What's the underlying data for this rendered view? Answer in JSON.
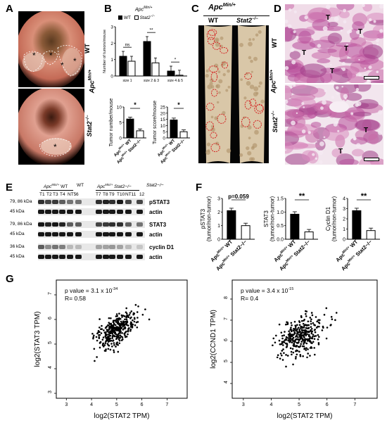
{
  "panels": {
    "A": "A",
    "B": "B",
    "C": "C",
    "D": "D",
    "E": "E",
    "F": "F",
    "G": "G"
  },
  "panelA": {
    "label_top": "WT",
    "label_bottom": "Stat2",
    "label_bottom_sup": "−/−",
    "group": "Apc",
    "group_sup": "Min/+",
    "marks": [
      "*",
      "*",
      "*",
      "*",
      "*"
    ]
  },
  "panelB": {
    "title": "Apc",
    "title_sup": "Min/+",
    "legend_wt": "WT",
    "legend_stat2": "Stat2",
    "legend_stat2_sup": "−/−",
    "chart_data": [
      {
        "type": "bar",
        "ylabel": "Number of tumors/mouse",
        "categories": [
          "size 1",
          "size 2 & 3",
          "size 4 & 5"
        ],
        "series": [
          {
            "name": "WT",
            "values": [
              1.2,
              2.1,
              0.3
            ]
          },
          {
            "name": "Stat2−/−",
            "values": [
              0.9,
              0.8,
              0.05
            ]
          }
        ],
        "ylim": [
          0,
          3
        ],
        "yticks": [
          "0",
          "1",
          "2",
          "3"
        ],
        "annotations": [
          "ns",
          "**",
          "*"
        ]
      },
      {
        "type": "bar",
        "ylabel": "Tumor number/mouse",
        "categories": [
          "Apc Min/+ WT",
          "Apc Min/+ Stat2−/−"
        ],
        "values": [
          6.1,
          2.3
        ],
        "ylim": [
          0,
          10
        ],
        "yticks": [
          "0",
          "5",
          "10"
        ],
        "annotations": [
          "*"
        ]
      },
      {
        "type": "bar",
        "ylabel": "Tumor score/mouse",
        "categories": [
          "Apc Min/+ WT",
          "Apc Min/+ Stat2−/−"
        ],
        "values": [
          14.5,
          5.0
        ],
        "ylim": [
          0,
          25
        ],
        "yticks": [
          "0",
          "5",
          "10",
          "15",
          "20",
          "25"
        ],
        "annotations": [
          "*"
        ]
      }
    ]
  },
  "panelC": {
    "group": "Apc",
    "group_sup": "Min/+",
    "wt": "WT",
    "stat2": "Stat2",
    "stat2_sup": "−/−"
  },
  "panelD": {
    "label_top": "WT",
    "label_bottom": "Stat2",
    "label_bottom_sup": "−/−",
    "group": "Apc",
    "group_sup": "Min/+",
    "tumor_marks": [
      "T",
      "T",
      "T",
      "T",
      "T",
      "T",
      "T"
    ]
  },
  "panelE": {
    "header_wt": "Apc",
    "header_wt_sup": "Min/+",
    "header_wt_tail": " WT",
    "header_wt2": "WT",
    "header_stat2": "Apc",
    "header_stat2_sup": "Min/+",
    "header_stat2_tail": " Stat2−/−",
    "header_stat2_2": "Stat2−/−",
    "lanes_left": [
      "T1",
      "T2",
      "T3",
      "T4",
      "NT5",
      "6"
    ],
    "lanes_right": [
      "T7",
      "T8",
      "T9",
      "T10",
      "NT11",
      "12"
    ],
    "rows": [
      {
        "kda": "79, 86 kDa",
        "name": "pSTAT3"
      },
      {
        "kda": "45 kDa",
        "name": "actin"
      },
      {
        "kda": "79, 86 kDa",
        "name": "STAT3"
      },
      {
        "kda": "45 kDa",
        "name": "actin"
      },
      {
        "kda": "36 kDa",
        "name": "cyclin D1"
      },
      {
        "kda": "45 kDa",
        "name": "actin"
      }
    ]
  },
  "panelF": {
    "chart_data": [
      {
        "type": "bar",
        "ylabel": "pSTAT3 (tumor/non-tumor)",
        "categories": [
          "Apc Min/+ WT",
          "Apc Min/+ Stat2−/−"
        ],
        "values": [
          2.1,
          1.0
        ],
        "ylim": [
          0,
          3
        ],
        "yticks": [
          "0",
          "1",
          "2",
          "3"
        ],
        "annotations": [
          "p=0.059"
        ]
      },
      {
        "type": "bar",
        "ylabel": "STAT3 (tumor/non-tumor)",
        "categories": [
          "Apc Min/+ WT",
          "Apc Min/+ Stat2−/−"
        ],
        "values": [
          0.92,
          0.27
        ],
        "ylim": [
          0,
          1.5
        ],
        "yticks": [
          "0.0",
          "0.5",
          "1.0",
          "1.5"
        ],
        "annotations": [
          "**"
        ]
      },
      {
        "type": "bar",
        "ylabel": "Cyclin D1 (tumor/non-tumor)",
        "categories": [
          "Apc Min/+ WT",
          "Apc Min/+ Stat2−/−"
        ],
        "values": [
          2.8,
          0.85
        ],
        "ylim": [
          0,
          4
        ],
        "yticks": [
          "0",
          "1",
          "2",
          "3",
          "4"
        ],
        "annotations": [
          "**"
        ]
      }
    ]
  },
  "panelG": {
    "chart_data": [
      {
        "type": "scatter",
        "xlabel": "log2(STAT2 TPM)",
        "ylabel": "log2(STAT3 TPM)",
        "pvalue_text": "p value = 3.1 x 10",
        "pvalue_exp": "-34",
        "r_text": "R= 0.58",
        "xlim": [
          2.6,
          7.8
        ],
        "ylim": [
          2.8,
          7.6
        ],
        "xticks": [
          "3",
          "4",
          "5",
          "6",
          "7"
        ],
        "yticks": [
          "3",
          "4",
          "5",
          "6",
          "7"
        ]
      },
      {
        "type": "scatter",
        "xlabel": "log2(STAT2 TPM)",
        "ylabel": "log2(CCND1 TPM)",
        "pvalue_text": "p value = 3.4 x 10",
        "pvalue_exp": "-15",
        "r_text": "R= 0.4",
        "xlim": [
          2.6,
          7.8
        ],
        "ylim": [
          3.3,
          8.9
        ],
        "xticks": [
          "3",
          "4",
          "5",
          "6",
          "7"
        ],
        "yticks": [
          "4",
          "5",
          "6",
          "7",
          "8"
        ]
      }
    ]
  }
}
